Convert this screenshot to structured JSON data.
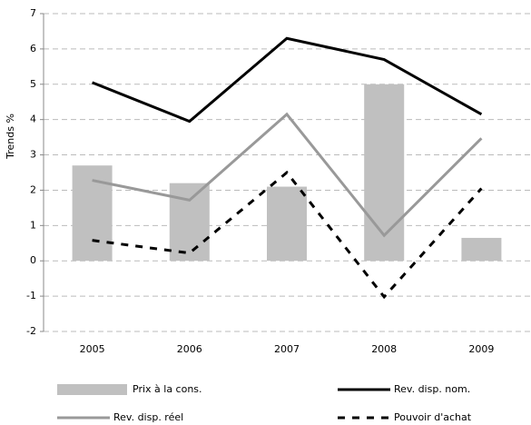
{
  "chart_data": {
    "type": "bar",
    "y_label": "Trends %",
    "categories": [
      "2005",
      "2006",
      "2007",
      "2008",
      "2009"
    ],
    "series": [
      {
        "name": "Prix à la cons.",
        "type": "bar",
        "color": "#c0c0c0",
        "values": [
          2.7,
          2.2,
          2.1,
          5.0,
          0.65
        ]
      },
      {
        "name": "Rev. disp. nom.",
        "type": "line",
        "color": "#000000",
        "dashed": false,
        "values": [
          5.05,
          3.95,
          6.3,
          5.7,
          4.15
        ]
      },
      {
        "name": "Rev. disp. réel",
        "type": "line",
        "color": "#999999",
        "dashed": false,
        "values": [
          2.28,
          1.72,
          4.15,
          0.72,
          3.47
        ]
      },
      {
        "name": "Pouvoir d'achat",
        "type": "line",
        "color": "#000000",
        "dashed": true,
        "values": [
          0.58,
          0.22,
          2.5,
          -1.02,
          2.05
        ]
      }
    ],
    "ylim": [
      -2,
      7
    ],
    "yticks": [
      -2,
      -1,
      0,
      1,
      2,
      3,
      4,
      5,
      6,
      7
    ],
    "grid": true
  }
}
